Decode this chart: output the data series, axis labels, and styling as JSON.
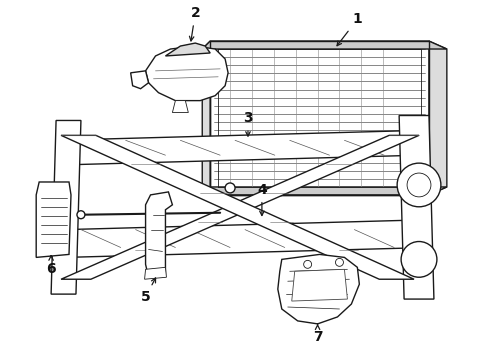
{
  "background_color": "#ffffff",
  "line_color": "#1a1a1a",
  "label_color": "#111111",
  "figsize": [
    4.9,
    3.6
  ],
  "dpi": 100
}
